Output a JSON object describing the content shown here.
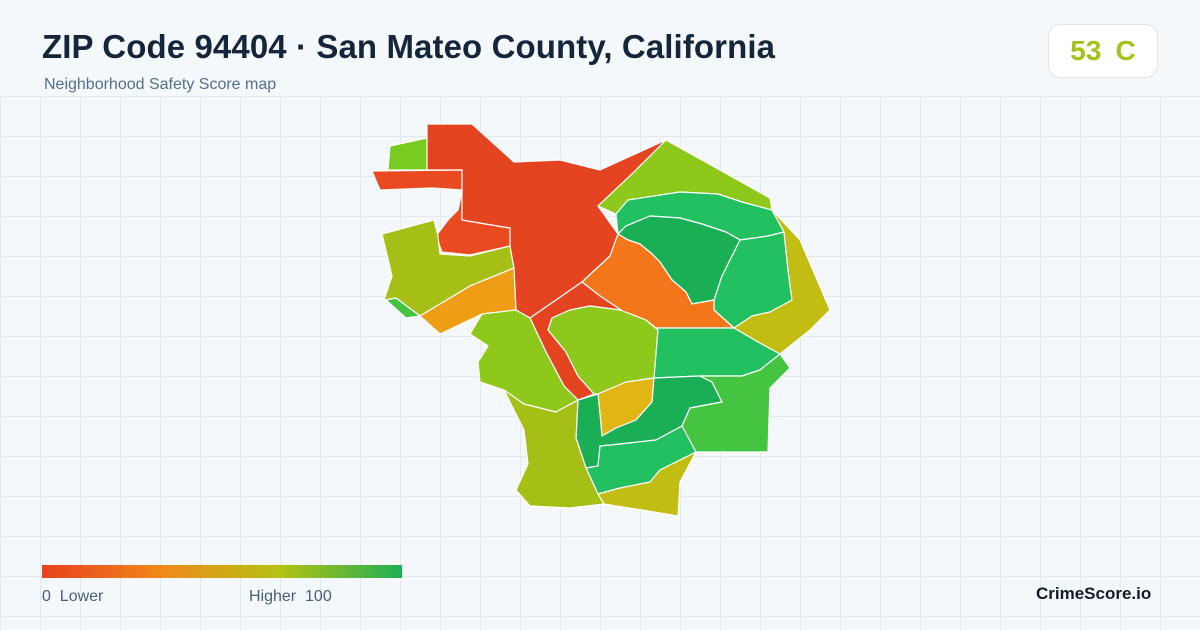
{
  "header": {
    "title": "ZIP Code 94404 · San Mateo County, California",
    "subtitle": "Neighborhood Safety Score map"
  },
  "score": {
    "value": "53",
    "grade": "C",
    "color": "#a6c21a"
  },
  "legend": {
    "min_label": "0",
    "min_text": "Lower",
    "max_text": "Higher",
    "max_label": "100",
    "colors": [
      "#e8401f",
      "#f0891a",
      "#b5c214",
      "#1fae53"
    ]
  },
  "brand": "CrimeScore.io",
  "map_colors": {
    "red": "#e4441f",
    "red_orange": "#ea4a1f",
    "orange": "#f4761b",
    "amber": "#ef9d15",
    "gold": "#e0b514",
    "olive": "#c1bd12",
    "yellow_green": "#a6bf17",
    "lime": "#8ec81a",
    "light_green": "#78cb21",
    "green": "#44c440",
    "teal_green": "#22c060",
    "deep_green": "#1aae55"
  }
}
